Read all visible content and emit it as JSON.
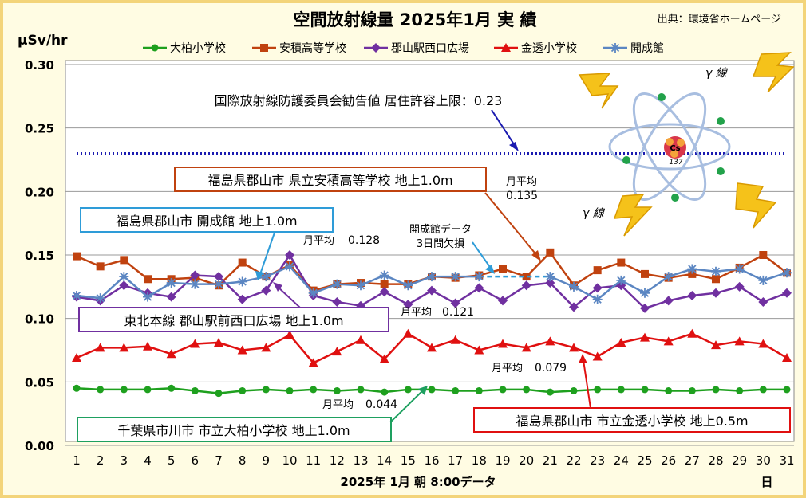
{
  "chart_data": {
    "type": "line",
    "title": "空間放射線量 2025年1月 実 績",
    "source": "出典：環境省ホームページ",
    "ylabel": "μSv/hr",
    "xlabel": "2025年  1月    朝  8:00データ",
    "x_unit": "日",
    "ylim": [
      0,
      0.3
    ],
    "yticks": [
      "0.00",
      "0.05",
      "0.10",
      "0.15",
      "0.20",
      "0.25",
      "0.30"
    ],
    "x": [
      1,
      2,
      3,
      4,
      5,
      6,
      7,
      8,
      9,
      10,
      11,
      12,
      13,
      14,
      15,
      16,
      17,
      18,
      19,
      20,
      21,
      22,
      23,
      24,
      25,
      26,
      27,
      28,
      29,
      30,
      31
    ],
    "grid": "horizontal",
    "legend_position": "top",
    "series": [
      {
        "name": "大柏小学校",
        "color": "#1EA01E",
        "marker": "circle",
        "values": [
          0.045,
          0.044,
          0.044,
          0.044,
          0.045,
          0.043,
          0.041,
          0.043,
          0.044,
          0.043,
          0.044,
          0.043,
          0.044,
          0.042,
          0.044,
          0.044,
          0.043,
          0.043,
          0.044,
          0.044,
          0.042,
          0.043,
          0.044,
          0.044,
          0.044,
          0.043,
          0.043,
          0.044,
          0.043,
          0.044,
          0.044
        ]
      },
      {
        "name": "安積高等学校",
        "color": "#C0420F",
        "marker": "square",
        "values": [
          0.149,
          0.141,
          0.146,
          0.131,
          0.131,
          0.132,
          0.126,
          0.144,
          0.133,
          0.142,
          0.122,
          0.127,
          0.128,
          0.127,
          0.127,
          0.133,
          0.132,
          0.134,
          0.139,
          0.133,
          0.152,
          0.126,
          0.138,
          0.144,
          0.135,
          0.132,
          0.135,
          0.131,
          0.14,
          0.15,
          0.136
        ]
      },
      {
        "name": "郡山駅西口広場",
        "color": "#7030A0",
        "marker": "diamond",
        "values": [
          0.117,
          0.114,
          0.126,
          0.12,
          0.117,
          0.134,
          0.133,
          0.115,
          0.122,
          0.15,
          0.118,
          0.113,
          0.11,
          0.121,
          0.111,
          0.122,
          0.112,
          0.124,
          0.114,
          0.126,
          0.128,
          0.109,
          0.124,
          0.126,
          0.108,
          0.114,
          0.118,
          0.12,
          0.125,
          0.113,
          0.12
        ]
      },
      {
        "name": "金透小学校",
        "color": "#E01010",
        "marker": "triangle",
        "values": [
          0.069,
          0.077,
          0.077,
          0.078,
          0.072,
          0.08,
          0.081,
          0.075,
          0.077,
          0.087,
          0.065,
          0.074,
          0.083,
          0.068,
          0.088,
          0.077,
          0.083,
          0.075,
          0.08,
          0.077,
          0.082,
          0.077,
          0.07,
          0.081,
          0.085,
          0.082,
          0.088,
          0.079,
          0.082,
          0.08,
          0.069
        ]
      },
      {
        "name": "開成館",
        "color": "#5B86C2",
        "marker": "star",
        "values": [
          0.118,
          0.116,
          0.133,
          0.117,
          0.128,
          0.127,
          0.127,
          0.129,
          0.133,
          0.141,
          0.12,
          0.127,
          0.126,
          0.134,
          0.126,
          0.133,
          0.133,
          0.133,
          0.133,
          0.133,
          0.133,
          0.125,
          0.115,
          0.13,
          0.12,
          0.133,
          0.139,
          0.137,
          0.139,
          0.13,
          0.136
        ],
        "missing_segment": [
          17,
          20
        ]
      }
    ],
    "reference_line": {
      "value": 0.23,
      "label": "国際放射線防護委員会勧告値  居住許容上限：0.23",
      "color": "#1A1AB0"
    },
    "annotations": [
      {
        "id": "anzumi",
        "text": "福島県郡山市  県立安積高等学校  地上1.0m",
        "color": "#C0420F",
        "avg_label": "月平均",
        "avg_value": "0.135"
      },
      {
        "id": "kaiseikan",
        "text": "福島県郡山市  開成館  地上1.0m",
        "color": "#2E9CD8",
        "avg_label": "月平均",
        "avg_value": "0.128"
      },
      {
        "id": "missing",
        "text": [
          "開成館データ",
          "3日間欠損"
        ],
        "color": "#2E9CD8"
      },
      {
        "id": "eki",
        "text": "東北本線  郡山駅前西口広場  地上1.0m",
        "color": "#7030A0",
        "avg_label": "月平均",
        "avg_value": "0.121"
      },
      {
        "id": "kinsuke",
        "text": "福島県郡山市  市立金透小学校  地上0.5m",
        "color": "#E01010",
        "avg_label": "月平均",
        "avg_value": "0.079"
      },
      {
        "id": "ichikawa",
        "text": "千葉県市川市  市立大柏小学校  地上1.0m",
        "color": "#1EA060",
        "avg_label": "月平均",
        "avg_value": "0.044"
      }
    ],
    "illustration": {
      "nucleus_label": "Cs",
      "mass_number": "137",
      "gamma_label": "γ 線"
    }
  }
}
